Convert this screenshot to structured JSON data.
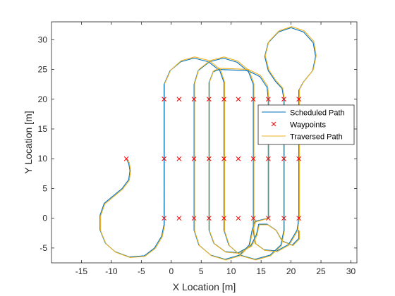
{
  "chart_data": {
    "type": "line",
    "xlabel": "X Location [m]",
    "ylabel": "Y Location [m]",
    "xlim": [
      -20,
      31
    ],
    "ylim": [
      -7.5,
      33
    ],
    "xticks": [
      -15,
      -10,
      -5,
      0,
      5,
      10,
      15,
      20,
      25,
      30
    ],
    "yticks": [
      -5,
      0,
      5,
      10,
      15,
      20,
      25,
      30
    ],
    "grid": false,
    "legend_position": "right",
    "colors": {
      "scheduled": "#0072BD",
      "waypoints": "#FF0000",
      "traversed": "#EDB120",
      "axes": "#262626"
    },
    "series": [
      {
        "name": "Scheduled Path",
        "style": "line",
        "points": [
          [
            -7.5,
            10
          ],
          [
            -7.1,
            9.2
          ],
          [
            -6.9,
            8.0
          ],
          [
            -7.1,
            6.5
          ],
          [
            -8.2,
            5.0
          ],
          [
            -10.0,
            3.5
          ],
          [
            -11.2,
            2.5
          ],
          [
            -11.9,
            0.5
          ],
          [
            -11.9,
            -2.0
          ],
          [
            -11.0,
            -4.2
          ],
          [
            -9.4,
            -5.6
          ],
          [
            -7.0,
            -6.5
          ],
          [
            -4.5,
            -6.3
          ],
          [
            -2.8,
            -5.0
          ],
          [
            -1.6,
            -3.0
          ],
          [
            -1.2,
            -1.0
          ],
          [
            -1.2,
            0
          ],
          [
            -1.2,
            10
          ],
          [
            -1.2,
            20
          ],
          [
            -1.2,
            22.5
          ],
          [
            -0.2,
            24.8
          ],
          [
            1.6,
            26.3
          ],
          [
            3.8,
            26.9
          ],
          [
            6.2,
            26.3
          ],
          [
            8.1,
            24.8
          ],
          [
            8.8,
            22.8
          ],
          [
            8.8,
            20
          ],
          [
            8.8,
            10
          ],
          [
            8.8,
            0
          ],
          [
            8.8,
            -2.0
          ],
          [
            9.6,
            -4.5
          ],
          [
            11.5,
            -6.2
          ],
          [
            14.0,
            -6.9
          ],
          [
            16.5,
            -6.2
          ],
          [
            18.3,
            -4.5
          ],
          [
            18.8,
            -2.0
          ],
          [
            18.8,
            0
          ],
          [
            18.8,
            10
          ],
          [
            18.8,
            20
          ],
          [
            18.5,
            21.8
          ],
          [
            17.4,
            23.0
          ],
          [
            16.2,
            24.8
          ],
          [
            15.6,
            27.2
          ],
          [
            16.2,
            29.5
          ],
          [
            17.9,
            31.3
          ],
          [
            20.0,
            32.0
          ],
          [
            22.1,
            31.3
          ],
          [
            23.7,
            29.5
          ],
          [
            24.1,
            27.2
          ],
          [
            23.6,
            24.8
          ],
          [
            22.0,
            22.8
          ],
          [
            21.3,
            21.5
          ],
          [
            21.3,
            20
          ],
          [
            21.3,
            10
          ],
          [
            21.3,
            0
          ],
          [
            21.0,
            -2.0
          ],
          [
            19.6,
            -4.4
          ],
          [
            17.6,
            -5.5
          ],
          [
            15.5,
            -5.3
          ],
          [
            14.0,
            -4.2
          ],
          [
            13.7,
            -2.0
          ],
          [
            13.7,
            0
          ],
          [
            13.7,
            10
          ],
          [
            13.7,
            20
          ],
          [
            13.7,
            22.5
          ],
          [
            12.9,
            24.6
          ],
          [
            11.0,
            26.2
          ],
          [
            8.7,
            26.9
          ],
          [
            6.4,
            26.3
          ],
          [
            4.5,
            24.8
          ],
          [
            3.8,
            22.5
          ],
          [
            3.8,
            20
          ],
          [
            3.8,
            10
          ],
          [
            3.8,
            0
          ],
          [
            3.8,
            -2.0
          ],
          [
            4.6,
            -4.5
          ],
          [
            6.6,
            -6.2
          ],
          [
            9.0,
            -6.9
          ],
          [
            11.4,
            -6.2
          ],
          [
            13.0,
            -4.5
          ],
          [
            13.5,
            -2.0
          ],
          [
            14.0,
            -0.5
          ],
          [
            16.2,
            0
          ],
          [
            16.2,
            10
          ],
          [
            16.2,
            20
          ],
          [
            16.0,
            22.0
          ],
          [
            14.8,
            23.8
          ],
          [
            12.8,
            24.8
          ],
          [
            10.5,
            24.9
          ],
          [
            8.0,
            25.0
          ],
          [
            7.0,
            24.6
          ],
          [
            6.3,
            22.8
          ],
          [
            6.3,
            20
          ],
          [
            6.3,
            10
          ],
          [
            6.3,
            0
          ],
          [
            6.3,
            -2.0
          ],
          [
            7.1,
            -4.2
          ],
          [
            9.0,
            -5.6
          ],
          [
            11.2,
            -5.8
          ],
          [
            13.3,
            -4.6
          ],
          [
            14.2,
            -2.8
          ],
          [
            14.6,
            -1.0
          ],
          [
            16.0,
            -1.0
          ],
          [
            17.5,
            -2.0
          ],
          [
            18.5,
            -3.8
          ],
          [
            20.2,
            -4.5
          ],
          [
            21.3,
            -3.4
          ],
          [
            21.3,
            -2.0
          ]
        ]
      },
      {
        "name": "Waypoints",
        "style": "x-marker",
        "points": [
          [
            -7.5,
            10
          ],
          [
            -1.2,
            20
          ],
          [
            1.3,
            20
          ],
          [
            3.8,
            20
          ],
          [
            6.3,
            20
          ],
          [
            8.8,
            20
          ],
          [
            11.2,
            20
          ],
          [
            13.7,
            20
          ],
          [
            16.2,
            20
          ],
          [
            18.8,
            20
          ],
          [
            21.3,
            20
          ],
          [
            -1.2,
            10
          ],
          [
            1.3,
            10
          ],
          [
            3.8,
            10
          ],
          [
            6.3,
            10
          ],
          [
            8.8,
            10
          ],
          [
            11.2,
            10
          ],
          [
            13.7,
            10
          ],
          [
            16.2,
            10
          ],
          [
            18.8,
            10
          ],
          [
            21.3,
            10
          ],
          [
            -1.2,
            0
          ],
          [
            1.3,
            0
          ],
          [
            3.8,
            0
          ],
          [
            6.3,
            0
          ],
          [
            8.8,
            0
          ],
          [
            11.2,
            0
          ],
          [
            13.7,
            0
          ],
          [
            16.2,
            0
          ],
          [
            18.8,
            0
          ],
          [
            21.3,
            0
          ]
        ]
      },
      {
        "name": "Traversed Path",
        "style": "line",
        "points": [
          [
            -7.5,
            10
          ],
          [
            -7.0,
            9.3
          ],
          [
            -6.8,
            8.0
          ],
          [
            -7.0,
            6.4
          ],
          [
            -8.1,
            4.9
          ],
          [
            -9.9,
            3.4
          ],
          [
            -11.1,
            2.4
          ],
          [
            -11.8,
            0.4
          ],
          [
            -11.8,
            -2.1
          ],
          [
            -10.9,
            -4.3
          ],
          [
            -9.3,
            -5.7
          ],
          [
            -6.9,
            -6.6
          ],
          [
            -4.4,
            -6.4
          ],
          [
            -2.7,
            -5.1
          ],
          [
            -1.5,
            -3.1
          ],
          [
            -1.1,
            -1.1
          ],
          [
            -1.1,
            0
          ],
          [
            -1.1,
            10
          ],
          [
            -1.1,
            20
          ],
          [
            -1.1,
            22.6
          ],
          [
            -0.1,
            24.9
          ],
          [
            1.7,
            26.5
          ],
          [
            3.9,
            27.1
          ],
          [
            6.3,
            26.5
          ],
          [
            8.2,
            25.0
          ],
          [
            8.9,
            22.9
          ],
          [
            8.9,
            20
          ],
          [
            8.9,
            10
          ],
          [
            8.9,
            0
          ],
          [
            8.9,
            -2.1
          ],
          [
            9.7,
            -4.6
          ],
          [
            11.6,
            -6.3
          ],
          [
            14.1,
            -7.0
          ],
          [
            16.6,
            -6.3
          ],
          [
            18.4,
            -4.6
          ],
          [
            18.9,
            -2.1
          ],
          [
            18.9,
            0
          ],
          [
            18.9,
            10
          ],
          [
            18.9,
            20
          ],
          [
            18.6,
            21.9
          ],
          [
            17.5,
            23.1
          ],
          [
            16.3,
            24.9
          ],
          [
            15.7,
            27.3
          ],
          [
            16.3,
            29.7
          ],
          [
            18.0,
            31.5
          ],
          [
            20.1,
            32.2
          ],
          [
            22.2,
            31.5
          ],
          [
            23.8,
            29.7
          ],
          [
            24.2,
            27.3
          ],
          [
            23.7,
            24.9
          ],
          [
            22.1,
            22.9
          ],
          [
            21.4,
            21.6
          ],
          [
            21.4,
            20
          ],
          [
            21.4,
            10
          ],
          [
            21.4,
            0
          ],
          [
            21.1,
            -2.1
          ],
          [
            19.7,
            -4.5
          ],
          [
            17.7,
            -5.6
          ],
          [
            15.6,
            -5.4
          ],
          [
            14.1,
            -4.3
          ],
          [
            13.8,
            -2.1
          ],
          [
            13.8,
            0
          ],
          [
            13.8,
            10
          ],
          [
            13.8,
            20
          ],
          [
            13.8,
            22.6
          ],
          [
            13.0,
            24.8
          ],
          [
            11.1,
            26.4
          ],
          [
            8.8,
            27.1
          ],
          [
            6.5,
            26.5
          ],
          [
            4.6,
            25.0
          ],
          [
            3.9,
            22.6
          ],
          [
            3.9,
            20
          ],
          [
            3.9,
            10
          ],
          [
            3.9,
            0
          ],
          [
            3.9,
            -2.1
          ],
          [
            4.7,
            -4.6
          ],
          [
            6.7,
            -6.3
          ],
          [
            9.1,
            -7.0
          ],
          [
            11.5,
            -6.3
          ],
          [
            13.1,
            -4.6
          ],
          [
            13.6,
            -2.1
          ],
          [
            14.1,
            -0.6
          ],
          [
            16.3,
            0
          ],
          [
            16.3,
            10
          ],
          [
            16.3,
            20
          ],
          [
            16.1,
            22.2
          ],
          [
            14.9,
            24.0
          ],
          [
            12.9,
            25.0
          ],
          [
            10.6,
            25.1
          ],
          [
            8.1,
            25.2
          ],
          [
            7.1,
            24.8
          ],
          [
            6.4,
            22.9
          ],
          [
            6.4,
            20
          ],
          [
            6.4,
            10
          ],
          [
            6.4,
            0
          ],
          [
            6.4,
            -2.1
          ],
          [
            7.2,
            -4.3
          ],
          [
            9.1,
            -5.7
          ],
          [
            11.3,
            -5.9
          ],
          [
            13.4,
            -4.7
          ],
          [
            14.3,
            -2.9
          ],
          [
            14.7,
            -1.1
          ],
          [
            16.1,
            -1.1
          ],
          [
            17.6,
            -2.1
          ],
          [
            18.6,
            -3.9
          ],
          [
            20.3,
            -4.6
          ],
          [
            21.4,
            -3.5
          ],
          [
            21.4,
            -2.1
          ]
        ]
      }
    ]
  }
}
